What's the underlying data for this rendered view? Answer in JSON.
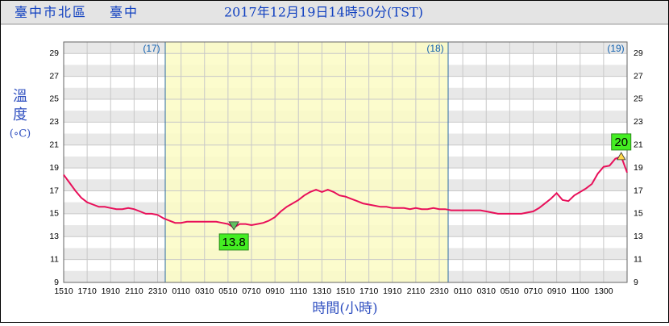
{
  "header": {
    "station": "臺中市北區",
    "city": "臺中",
    "time": "2017年12月19日14時50分(TST)"
  },
  "chart_data": {
    "type": "line",
    "y_label_1": "溫",
    "y_label_2": "度",
    "y_unit": "(∘C)",
    "x_label": "時間(小時)",
    "day_markers": [
      "(17)",
      "(18)",
      "(19)"
    ],
    "xticks": [
      "1510",
      "1710",
      "1910",
      "2110",
      "2310",
      "0110",
      "0310",
      "0510",
      "0710",
      "0910",
      "1110",
      "1310",
      "1510",
      "1710",
      "1910",
      "2110",
      "2310",
      "0110",
      "0310",
      "0510",
      "0710",
      "0910",
      "1100",
      "1300"
    ],
    "ylim": [
      9,
      30
    ],
    "yticks": [
      9,
      11,
      13,
      15,
      17,
      19,
      21,
      23,
      25,
      27,
      29
    ],
    "color": "#e8105a",
    "grid": true,
    "values": [
      18.4,
      17.7,
      17.0,
      16.4,
      16.0,
      15.8,
      15.6,
      15.6,
      15.5,
      15.4,
      15.4,
      15.5,
      15.4,
      15.2,
      15.0,
      15.0,
      14.9,
      14.6,
      14.4,
      14.2,
      14.2,
      14.3,
      14.3,
      14.3,
      14.3,
      14.3,
      14.3,
      14.2,
      14.1,
      13.8,
      14.1,
      14.1,
      14.0,
      14.1,
      14.2,
      14.4,
      14.7,
      15.2,
      15.6,
      15.9,
      16.2,
      16.6,
      16.9,
      17.1,
      16.9,
      17.1,
      16.9,
      16.6,
      16.5,
      16.3,
      16.1,
      15.9,
      15.8,
      15.7,
      15.6,
      15.6,
      15.5,
      15.5,
      15.5,
      15.4,
      15.5,
      15.4,
      15.4,
      15.5,
      15.4,
      15.4,
      15.3,
      15.3,
      15.3,
      15.3,
      15.3,
      15.3,
      15.2,
      15.1,
      15.0,
      15.0,
      15.0,
      15.0,
      15.0,
      15.1,
      15.2,
      15.5,
      15.9,
      16.3,
      16.8,
      16.2,
      16.1,
      16.6,
      16.9,
      17.2,
      17.6,
      18.5,
      19.1,
      19.2,
      19.8,
      20,
      18.6
    ],
    "annotations": [
      20,
      13.8
    ]
  }
}
